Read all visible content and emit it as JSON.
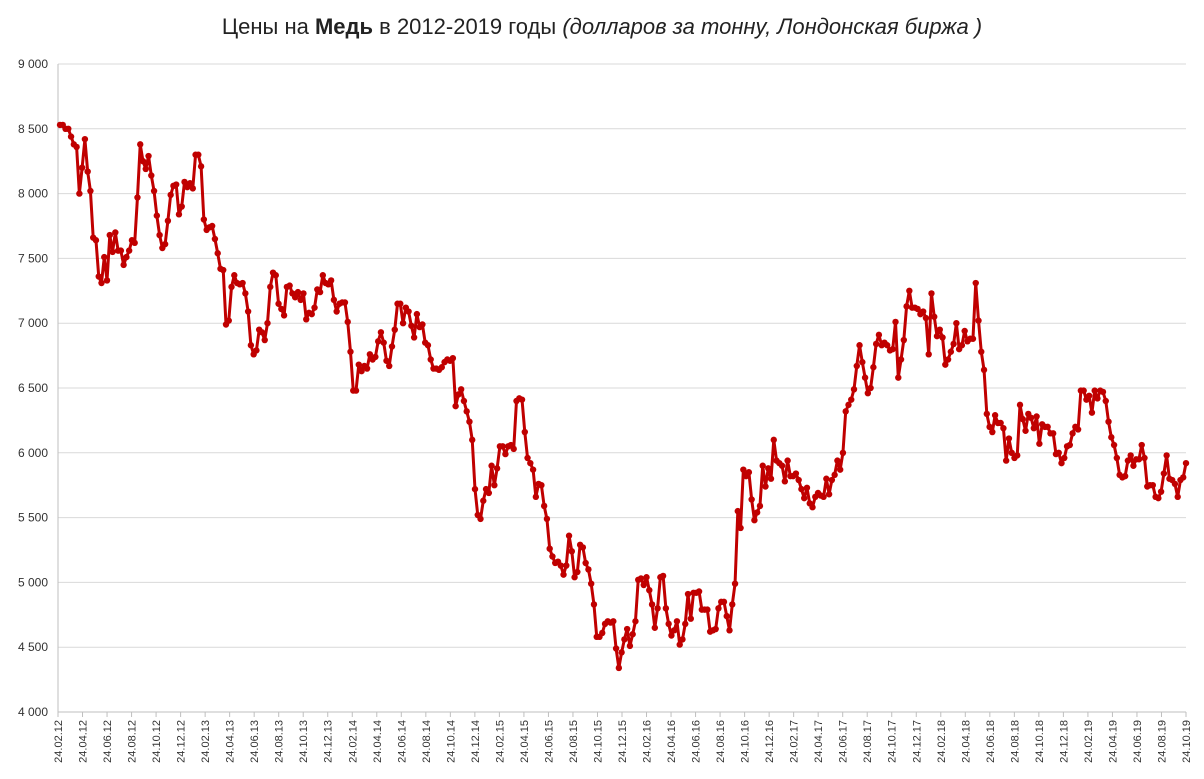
{
  "chart_data": {
    "type": "line",
    "title_prefix": "Цены на ",
    "title_bold": "Медь",
    "title_middle": " в 2012-2019 годы ",
    "title_italic": "(долларов за тонну, Лондонская биржа )",
    "ylim": [
      4000,
      9000
    ],
    "y_ticks": [
      4000,
      4500,
      5000,
      5500,
      6000,
      6500,
      7000,
      7500,
      8000,
      8500,
      9000
    ],
    "y_tick_labels": [
      "4 000",
      "4 500",
      "5 000",
      "5 500",
      "6 000",
      "6 500",
      "7 000",
      "7 500",
      "8 000",
      "8 500",
      "9 000"
    ],
    "x_tick_labels": [
      "24.02.12",
      "24.04.12",
      "24.06.12",
      "24.08.12",
      "24.10.12",
      "24.12.12",
      "24.02.13",
      "24.04.13",
      "24.06.13",
      "24.08.13",
      "24.10.13",
      "24.12.13",
      "24.02.14",
      "24.04.14",
      "24.06.14",
      "24.08.14",
      "24.10.14",
      "24.12.14",
      "24.02.15",
      "24.04.15",
      "24.06.15",
      "24.08.15",
      "24.10.15",
      "24.12.15",
      "24.02.16",
      "24.04.16",
      "24.06.16",
      "24.08.16",
      "24.10.16",
      "24.12.16",
      "24.02.17",
      "24.04.17",
      "24.06.17",
      "24.08.17",
      "24.10.17",
      "24.12.17",
      "24.02.18",
      "24.04.18",
      "24.06.18",
      "24.08.18",
      "24.10.18",
      "24.12.18",
      "24.02.19",
      "24.04.19",
      "24.06.19",
      "24.08.19",
      "24.10.19"
    ],
    "grid": true,
    "line_color": "#c00000",
    "series": [
      {
        "values": [
          8530,
          8530,
          8500,
          8500,
          8440,
          8380,
          8360,
          8000,
          8200,
          8420,
          8170,
          8020,
          7660,
          7640,
          7360,
          7310,
          7510,
          7330,
          7680,
          7550,
          7700,
          7560,
          7560,
          7450,
          7510,
          7560,
          7640,
          7620,
          7970,
          8380,
          8250,
          8190,
          8290,
          8140,
          8020,
          7830,
          7680,
          7580,
          7610,
          7790,
          7990,
          8060,
          8070,
          7840,
          7900,
          8090,
          8050,
          8080,
          8040,
          8300,
          8300,
          8210,
          7800,
          7720,
          7740,
          7750,
          7650,
          7540,
          7420,
          7410,
          6990,
          7020,
          7280,
          7370,
          7310,
          7300,
          7310,
          7230,
          7090,
          6830,
          6760,
          6790,
          6950,
          6930,
          6870,
          7000,
          7280,
          7390,
          7370,
          7150,
          7110,
          7060,
          7280,
          7290,
          7230,
          7200,
          7240,
          7180,
          7230,
          7030,
          7080,
          7070,
          7120,
          7260,
          7240,
          7370,
          7310,
          7300,
          7330,
          7180,
          7090,
          7150,
          7160,
          7160,
          7010,
          6780,
          6480,
          6480,
          6680,
          6630,
          6670,
          6650,
          6760,
          6720,
          6740,
          6860,
          6930,
          6850,
          6710,
          6670,
          6820,
          6950,
          7150,
          7150,
          7000,
          7120,
          7090,
          6980,
          6890,
          7070,
          6970,
          6990,
          6850,
          6830,
          6720,
          6650,
          6650,
          6640,
          6660,
          6700,
          6720,
          6710,
          6730,
          6360,
          6450,
          6490,
          6400,
          6320,
          6240,
          6100,
          5720,
          5520,
          5490,
          5630,
          5720,
          5690,
          5900,
          5750,
          5880,
          6050,
          6050,
          5990,
          6050,
          6060,
          6030,
          6400,
          6420,
          6410,
          6160,
          5960,
          5920,
          5870,
          5660,
          5760,
          5750,
          5590,
          5490,
          5260,
          5200,
          5150,
          5160,
          5130,
          5060,
          5130,
          5360,
          5240,
          5040,
          5080,
          5290,
          5270,
          5150,
          5100,
          4990,
          4830,
          4580,
          4580,
          4610,
          4680,
          4700,
          4690,
          4700,
          4490,
          4340,
          4460,
          4560,
          4640,
          4510,
          4600,
          4700,
          5020,
          5030,
          4980,
          5040,
          4940,
          4830,
          4650,
          4800,
          5040,
          5050,
          4800,
          4680,
          4590,
          4630,
          4700,
          4520,
          4560,
          4680,
          4910,
          4720,
          4920,
          4920,
          4930,
          4790,
          4790,
          4790,
          4620,
          4630,
          4640,
          4800,
          4850,
          4850,
          4740,
          4630,
          4830,
          4990,
          5550,
          5420,
          5870,
          5820,
          5850,
          5640,
          5480,
          5540,
          5590,
          5900,
          5740,
          5880,
          5800,
          6100,
          5940,
          5920,
          5900,
          5780,
          5940,
          5820,
          5820,
          5840,
          5790,
          5720,
          5650,
          5730,
          5610,
          5580,
          5660,
          5690,
          5670,
          5660,
          5800,
          5680,
          5790,
          5830,
          5940,
          5870,
          6000,
          6320,
          6370,
          6410,
          6490,
          6670,
          6830,
          6700,
          6580,
          6460,
          6500,
          6660,
          6840,
          6910,
          6830,
          6850,
          6830,
          6790,
          6800,
          7010,
          6580,
          6720,
          6870,
          7130,
          7250,
          7120,
          7120,
          7110,
          7070,
          7090,
          7040,
          6760,
          7230,
          7050,
          6900,
          6950,
          6890,
          6680,
          6720,
          6780,
          6840,
          7000,
          6800,
          6830,
          6940,
          6860,
          6880,
          6880,
          7310,
          7020,
          6780,
          6640,
          6300,
          6200,
          6160,
          6290,
          6230,
          6230,
          6190,
          5940,
          6110,
          6000,
          5960,
          5980,
          6370,
          6260,
          6170,
          6300,
          6270,
          6190,
          6280,
          6070,
          6220,
          6200,
          6200,
          6150,
          6150,
          5990,
          6000,
          5920,
          5960,
          6050,
          6060,
          6150,
          6200,
          6180,
          6480,
          6480,
          6410,
          6440,
          6310,
          6480,
          6420,
          6480,
          6470,
          6400,
          6240,
          6120,
          6060,
          5960,
          5830,
          5810,
          5820,
          5940,
          5980,
          5900,
          5950,
          5950,
          6060,
          5960,
          5740,
          5750,
          5750,
          5660,
          5650,
          5700,
          5840,
          5980,
          5800,
          5790,
          5760,
          5660,
          5790,
          5810,
          5920
        ]
      }
    ]
  }
}
